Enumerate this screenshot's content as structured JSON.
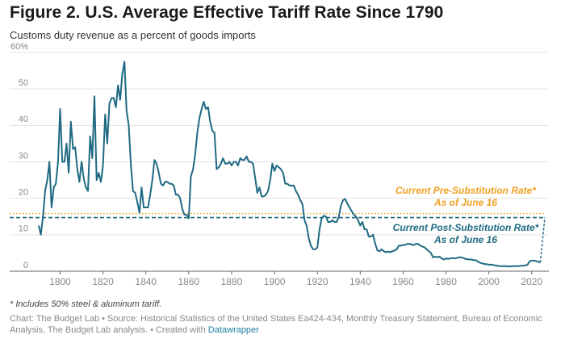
{
  "chart_data": {
    "type": "line",
    "title": "Figure 2. U.S. Average Effective Tariff Rate Since 1790",
    "subtitle": "Customs duty revenue as a percent of goods imports",
    "x": [
      1790,
      1791,
      1792,
      1793,
      1794,
      1795,
      1796,
      1797,
      1798,
      1799,
      1800,
      1801,
      1802,
      1803,
      1804,
      1805,
      1806,
      1807,
      1808,
      1809,
      1810,
      1811,
      1812,
      1813,
      1814,
      1815,
      1816,
      1817,
      1818,
      1819,
      1820,
      1821,
      1822,
      1823,
      1824,
      1825,
      1826,
      1827,
      1828,
      1829,
      1830,
      1831,
      1832,
      1833,
      1834,
      1835,
      1836,
      1837,
      1838,
      1839,
      1840,
      1841,
      1842,
      1843,
      1844,
      1845,
      1846,
      1847,
      1848,
      1849,
      1850,
      1851,
      1852,
      1853,
      1854,
      1855,
      1856,
      1857,
      1858,
      1859,
      1860,
      1861,
      1862,
      1863,
      1864,
      1865,
      1866,
      1867,
      1868,
      1869,
      1870,
      1871,
      1872,
      1873,
      1874,
      1875,
      1876,
      1877,
      1878,
      1879,
      1880,
      1881,
      1882,
      1883,
      1884,
      1885,
      1886,
      1887,
      1888,
      1889,
      1890,
      1891,
      1892,
      1893,
      1894,
      1895,
      1896,
      1897,
      1898,
      1899,
      1900,
      1901,
      1902,
      1903,
      1904,
      1905,
      1906,
      1907,
      1908,
      1909,
      1910,
      1911,
      1912,
      1913,
      1914,
      1915,
      1916,
      1917,
      1918,
      1919,
      1920,
      1921,
      1922,
      1923,
      1924,
      1925,
      1926,
      1927,
      1928,
      1929,
      1930,
      1931,
      1932,
      1933,
      1934,
      1935,
      1936,
      1937,
      1938,
      1939,
      1940,
      1941,
      1942,
      1943,
      1944,
      1945,
      1946,
      1947,
      1948,
      1949,
      1950,
      1951,
      1952,
      1953,
      1954,
      1955,
      1956,
      1957,
      1958,
      1959,
      1960,
      1961,
      1962,
      1963,
      1964,
      1965,
      1966,
      1967,
      1968,
      1969,
      1970,
      1971,
      1972,
      1973,
      1974,
      1975,
      1976,
      1977,
      1978,
      1979,
      1980,
      1981,
      1982,
      1983,
      1984,
      1985,
      1986,
      1987,
      1988,
      1989,
      1990,
      1991,
      1992,
      1993,
      1994,
      1995,
      1996,
      1997,
      1998,
      1999,
      2000,
      2001,
      2002,
      2003,
      2004,
      2005,
      2006,
      2007,
      2008,
      2009,
      2010,
      2011,
      2012,
      2013,
      2014,
      2015,
      2016,
      2017,
      2018,
      2019,
      2020,
      2021,
      2022,
      2023,
      2024
    ],
    "series": [
      {
        "name": "Average effective tariff rate",
        "color": "#1f6a83",
        "values": [
          12.5,
          10,
          15,
          22,
          25,
          30,
          17.5,
          23,
          24,
          30,
          44.5,
          30,
          30,
          35,
          27,
          41,
          33.5,
          34,
          28,
          24.5,
          30,
          25.5,
          23,
          22,
          37,
          31,
          48,
          25,
          27,
          24.5,
          29,
          43,
          35,
          46,
          47.5,
          47.5,
          45,
          51,
          47,
          54,
          57.5,
          44,
          40,
          29,
          22,
          21.5,
          19,
          16,
          23,
          17.5,
          17.5,
          17.5,
          21,
          25,
          30.5,
          29.5,
          27,
          24,
          23.5,
          24.5,
          24.5,
          24,
          24,
          23.5,
          21,
          21,
          20,
          17,
          15.5,
          15.5,
          14.5,
          26,
          28,
          32,
          38,
          42,
          44.5,
          46.5,
          44.5,
          45,
          41,
          38.5,
          38,
          28,
          28.5,
          29.5,
          31,
          29.5,
          29.5,
          30,
          29,
          30,
          30,
          29,
          31,
          30.5,
          30.5,
          31.5,
          30,
          30,
          29.5,
          25.5,
          21.5,
          23,
          20.5,
          20.5,
          21,
          22,
          25,
          29.5,
          27.5,
          29,
          28.5,
          28,
          27,
          24,
          24,
          23.5,
          23.5,
          23.5,
          22,
          21,
          19.5,
          18.5,
          14,
          12.5,
          9,
          7,
          6,
          6,
          6.5,
          11.5,
          14.5,
          15.2,
          15,
          13.5,
          13.5,
          14,
          13.5,
          13.5,
          15,
          18,
          19.5,
          19.8,
          18.5,
          17.5,
          16.5,
          15.5,
          15,
          14,
          12.5,
          13.5,
          11.5,
          11.5,
          9.5,
          9.5,
          10,
          7.5,
          5.7,
          5.5,
          6,
          5.5,
          5.2,
          5.4,
          5.2,
          5.5,
          5.7,
          6,
          7,
          7,
          7.2,
          7.2,
          7.5,
          7.5,
          7.3,
          7.2,
          7.5,
          7.5,
          7,
          6.8,
          6.5,
          6,
          5.5,
          5,
          3.8,
          4,
          3.8,
          4,
          3.5,
          3.2,
          3.5,
          3.4,
          3.5,
          3.6,
          3.5,
          3.6,
          3.8,
          3.8,
          3.6,
          3.4,
          3.3,
          3.2,
          3.2,
          3,
          3,
          2.6,
          2.3,
          2.1,
          2,
          1.9,
          1.8,
          1.8,
          1.7,
          1.6,
          1.5,
          1.4,
          1.4,
          1.4,
          1.4,
          1.3,
          1.3,
          1.4,
          1.4,
          1.4,
          1.4,
          1.5,
          1.5,
          1.6,
          1.7,
          2.7,
          2.9,
          2.9,
          2.8,
          2.6,
          2.4
        ]
      }
    ],
    "reference_lines": [
      {
        "label": "Current Pre-Substitution Rate*",
        "sublabel": "As of June 16",
        "value": 15.8,
        "color": "#f0a020",
        "style": "dotted"
      },
      {
        "label": "Current Post-Substitution Rate*",
        "sublabel": "As of June 16",
        "value": 14.7,
        "color": "#1f6a83",
        "style": "dashed"
      }
    ],
    "xlim": [
      1787,
      2028
    ],
    "ylim": [
      0,
      60
    ],
    "xticks": [
      1800,
      1820,
      1840,
      1860,
      1880,
      1900,
      1920,
      1940,
      1960,
      1980,
      2000,
      2020
    ],
    "yticks": [
      0,
      10,
      20,
      30,
      40,
      {
        "value": 60,
        "label": "60%"
      },
      50
    ],
    "grid": true,
    "footnote": "* Includes 50% steel & aluminum tariff.",
    "source": "Chart: The Budget Lab • Source: Historical Statistics of the United States Ea424-434, Monthly Treasury Statement, Bureau of Economic Analysis, The Budget Lab analysis. • Created with",
    "source_link": "Datawrapper"
  }
}
